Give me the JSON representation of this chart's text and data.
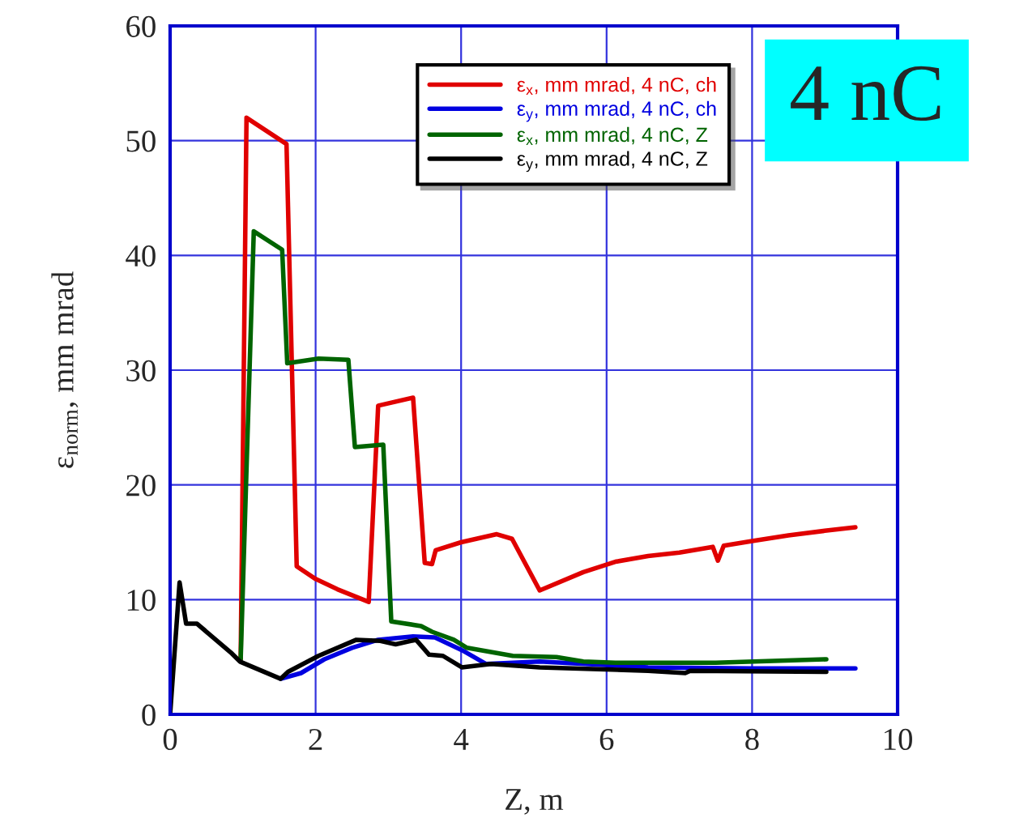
{
  "chart_data": {
    "type": "line",
    "xlabel": "Z, m",
    "ylabel": "ε$_{norm}$, mm mrad",
    "xlim": [
      0,
      10
    ],
    "ylim": [
      0,
      60
    ],
    "xticks": [
      0,
      2,
      4,
      6,
      8,
      10
    ],
    "yticks": [
      0,
      10,
      20,
      30,
      40,
      50,
      60
    ],
    "grid": true,
    "legend": "top right",
    "marker": "none",
    "line_style": "solid",
    "annotations": [
      "4 nC"
    ],
    "series": [
      {
        "name": "ε$_{x}$, mm mrad, 4 nC, ch",
        "color": "#e00000",
        "x": [
          0.97,
          1.05,
          1.6,
          1.74,
          2.0,
          2.3,
          2.73,
          2.86,
          3.34,
          3.5,
          3.6,
          3.65,
          4.0,
          4.49,
          4.7,
          5.08,
          5.68,
          6.12,
          6.57,
          7.0,
          7.46,
          7.53,
          7.61,
          8.0,
          8.5,
          9.0,
          9.42
        ],
        "values": [
          4.8,
          52,
          49.7,
          12.9,
          11.8,
          10.9,
          9.8,
          26.9,
          27.6,
          13.2,
          13.1,
          14.3,
          15.0,
          15.7,
          15.3,
          10.8,
          12.4,
          13.3,
          13.8,
          14.1,
          14.6,
          13.4,
          14.7,
          15.1,
          15.6,
          16.0,
          16.3
        ]
      },
      {
        "name": "ε$_{y}$, mm mrad, 4 nC, ch",
        "color": "#0000e0",
        "x": [
          1.52,
          1.8,
          2.12,
          2.5,
          2.86,
          3.34,
          3.64,
          4.04,
          4.34,
          5.08,
          6.57,
          8.0,
          9.42
        ],
        "values": [
          3.1,
          3.6,
          4.8,
          5.8,
          6.5,
          6.8,
          6.7,
          5.5,
          4.4,
          4.6,
          4.1,
          4.0,
          4.0
        ]
      },
      {
        "name": "ε$_{x}$, mm mrad, 4 nC, Z",
        "color": "#006400",
        "x": [
          0.97,
          1.15,
          1.54,
          1.61,
          2.04,
          2.45,
          2.54,
          2.93,
          3.04,
          3.45,
          3.6,
          3.9,
          4.08,
          4.71,
          5.31,
          5.68,
          6.12,
          7.5,
          9.02
        ],
        "values": [
          4.8,
          42.1,
          40.5,
          30.6,
          31.0,
          30.9,
          23.3,
          23.5,
          8.1,
          7.7,
          7.2,
          6.5,
          5.8,
          5.1,
          5.0,
          4.6,
          4.5,
          4.5,
          4.8
        ]
      },
      {
        "name": "ε$_{y}$, mm mrad, 4 nC, Z",
        "color": "#000000",
        "x": [
          0,
          0.13,
          0.22,
          0.37,
          0.85,
          0.96,
          1.52,
          1.62,
          2.04,
          2.56,
          2.89,
          3.1,
          3.38,
          3.56,
          3.75,
          4.01,
          4.41,
          5.08,
          6.57,
          7.08,
          7.15,
          9.02
        ],
        "values": [
          0,
          11.5,
          7.9,
          7.9,
          5.3,
          4.6,
          3.1,
          3.7,
          5.1,
          6.5,
          6.4,
          6.1,
          6.5,
          5.2,
          5.1,
          4.1,
          4.4,
          4.1,
          3.8,
          3.6,
          3.8,
          3.7
        ]
      }
    ]
  }
}
